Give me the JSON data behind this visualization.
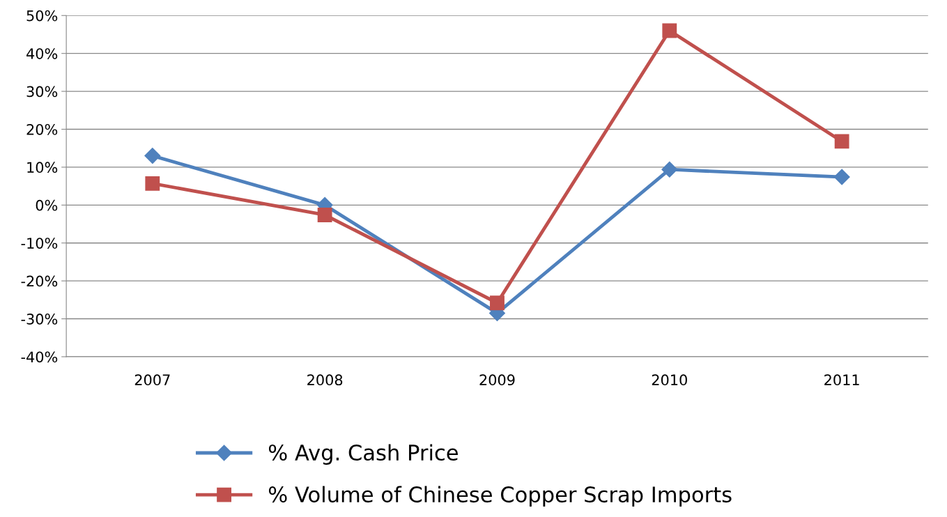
{
  "chart_data": {
    "type": "line",
    "categories": [
      "2007",
      "2008",
      "2009",
      "2010",
      "2011"
    ],
    "series": [
      {
        "name": "% Avg. Cash Price",
        "color": "#4f81bd",
        "marker": "diamond",
        "values": [
          13,
          0,
          -28.5,
          9.4,
          7.4
        ]
      },
      {
        "name": "% Volume of Chinese Copper Scrap Imports",
        "color": "#c0504d",
        "marker": "square",
        "values": [
          5.7,
          -2.6,
          -25.8,
          46,
          16.8
        ]
      }
    ],
    "ylim": [
      -40,
      50
    ],
    "yticks": [
      {
        "value": -40,
        "label": "-40%"
      },
      {
        "value": -30,
        "label": "-30%"
      },
      {
        "value": -20,
        "label": "-20%"
      },
      {
        "value": -10,
        "label": "-10%"
      },
      {
        "value": 0,
        "label": "0%"
      },
      {
        "value": 10,
        "label": "10%"
      },
      {
        "value": 20,
        "label": "20%"
      },
      {
        "value": 30,
        "label": "30%"
      },
      {
        "value": 40,
        "label": "40%"
      },
      {
        "value": 50,
        "label": "50%"
      }
    ],
    "grid": "y",
    "legend": "bottom",
    "line_style": "solid"
  }
}
